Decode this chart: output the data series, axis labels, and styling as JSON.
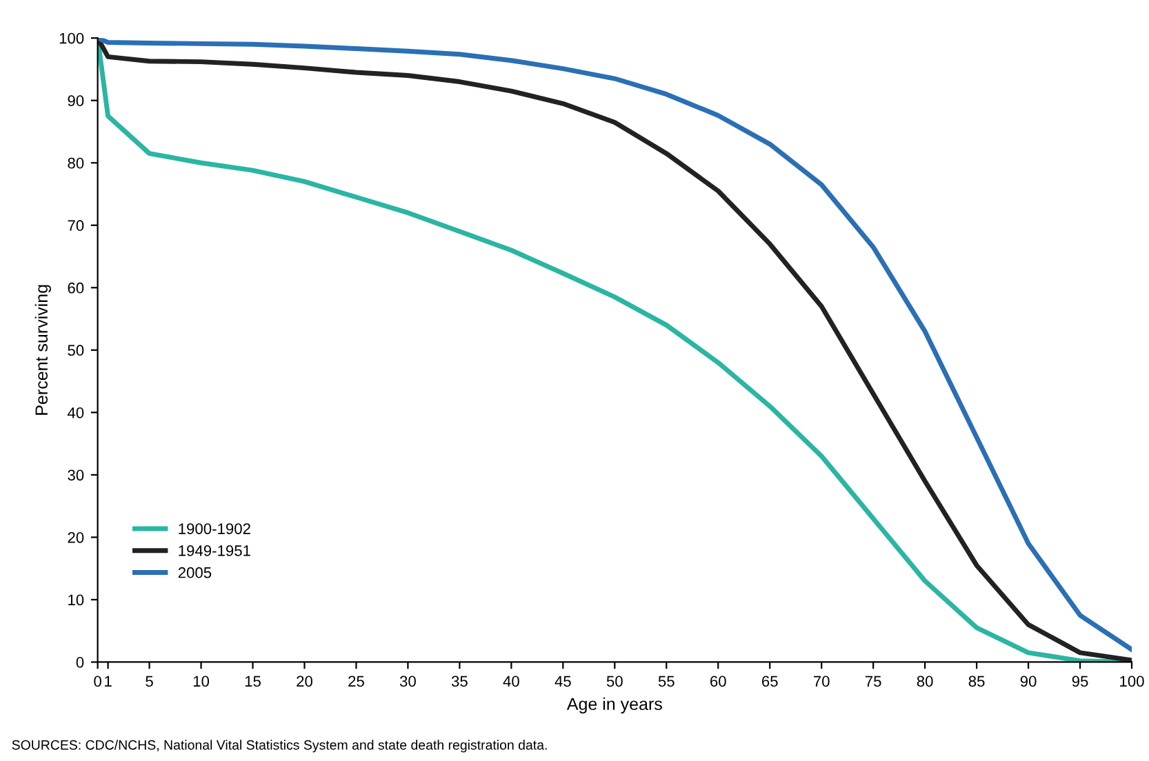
{
  "chart_data": {
    "type": "line",
    "xlabel": "Age in years",
    "ylabel": "Percent surviving",
    "x": [
      0,
      1,
      5,
      10,
      15,
      20,
      25,
      30,
      35,
      40,
      45,
      50,
      55,
      60,
      65,
      70,
      75,
      80,
      85,
      90,
      95,
      100
    ],
    "series": [
      {
        "name": "1900-1902",
        "color": "#2bb5a3",
        "values": [
          100,
          87.5,
          81.5,
          80,
          78.8,
          77,
          74.5,
          72,
          69,
          66,
          62.3,
          58.5,
          54,
          48,
          41,
          33,
          23,
          13,
          5.5,
          1.5,
          0.2,
          0
        ]
      },
      {
        "name": "1949-1951",
        "color": "#222222",
        "values": [
          100,
          97,
          96.3,
          96.2,
          95.8,
          95.2,
          94.5,
          94,
          93,
          91.5,
          89.5,
          86.5,
          81.5,
          75.5,
          67,
          57,
          43,
          29,
          15.5,
          6,
          1.5,
          0.3
        ]
      },
      {
        "name": "2005",
        "color": "#2b6fb5",
        "values": [
          100,
          99.3,
          99.2,
          99.1,
          99,
          98.7,
          98.3,
          97.9,
          97.4,
          96.4,
          95.1,
          93.5,
          91,
          87.6,
          83,
          76.5,
          66.5,
          53,
          36,
          19,
          7.5,
          2
        ]
      }
    ],
    "xlim": [
      0,
      100
    ],
    "xticks": [
      0,
      1,
      5,
      10,
      15,
      20,
      25,
      30,
      35,
      40,
      45,
      50,
      55,
      60,
      65,
      70,
      75,
      80,
      85,
      90,
      95,
      100
    ],
    "ylim": [
      0,
      100
    ],
    "yticks": [
      0,
      10,
      20,
      30,
      40,
      50,
      60,
      70,
      80,
      90,
      100
    ],
    "grid": false,
    "legend": "bottom left",
    "marker": "none",
    "line_style": "solid",
    "annotations": [
      "SOURCES: CDC/NCHS, National Vital Statistics System and state death registration data."
    ]
  }
}
